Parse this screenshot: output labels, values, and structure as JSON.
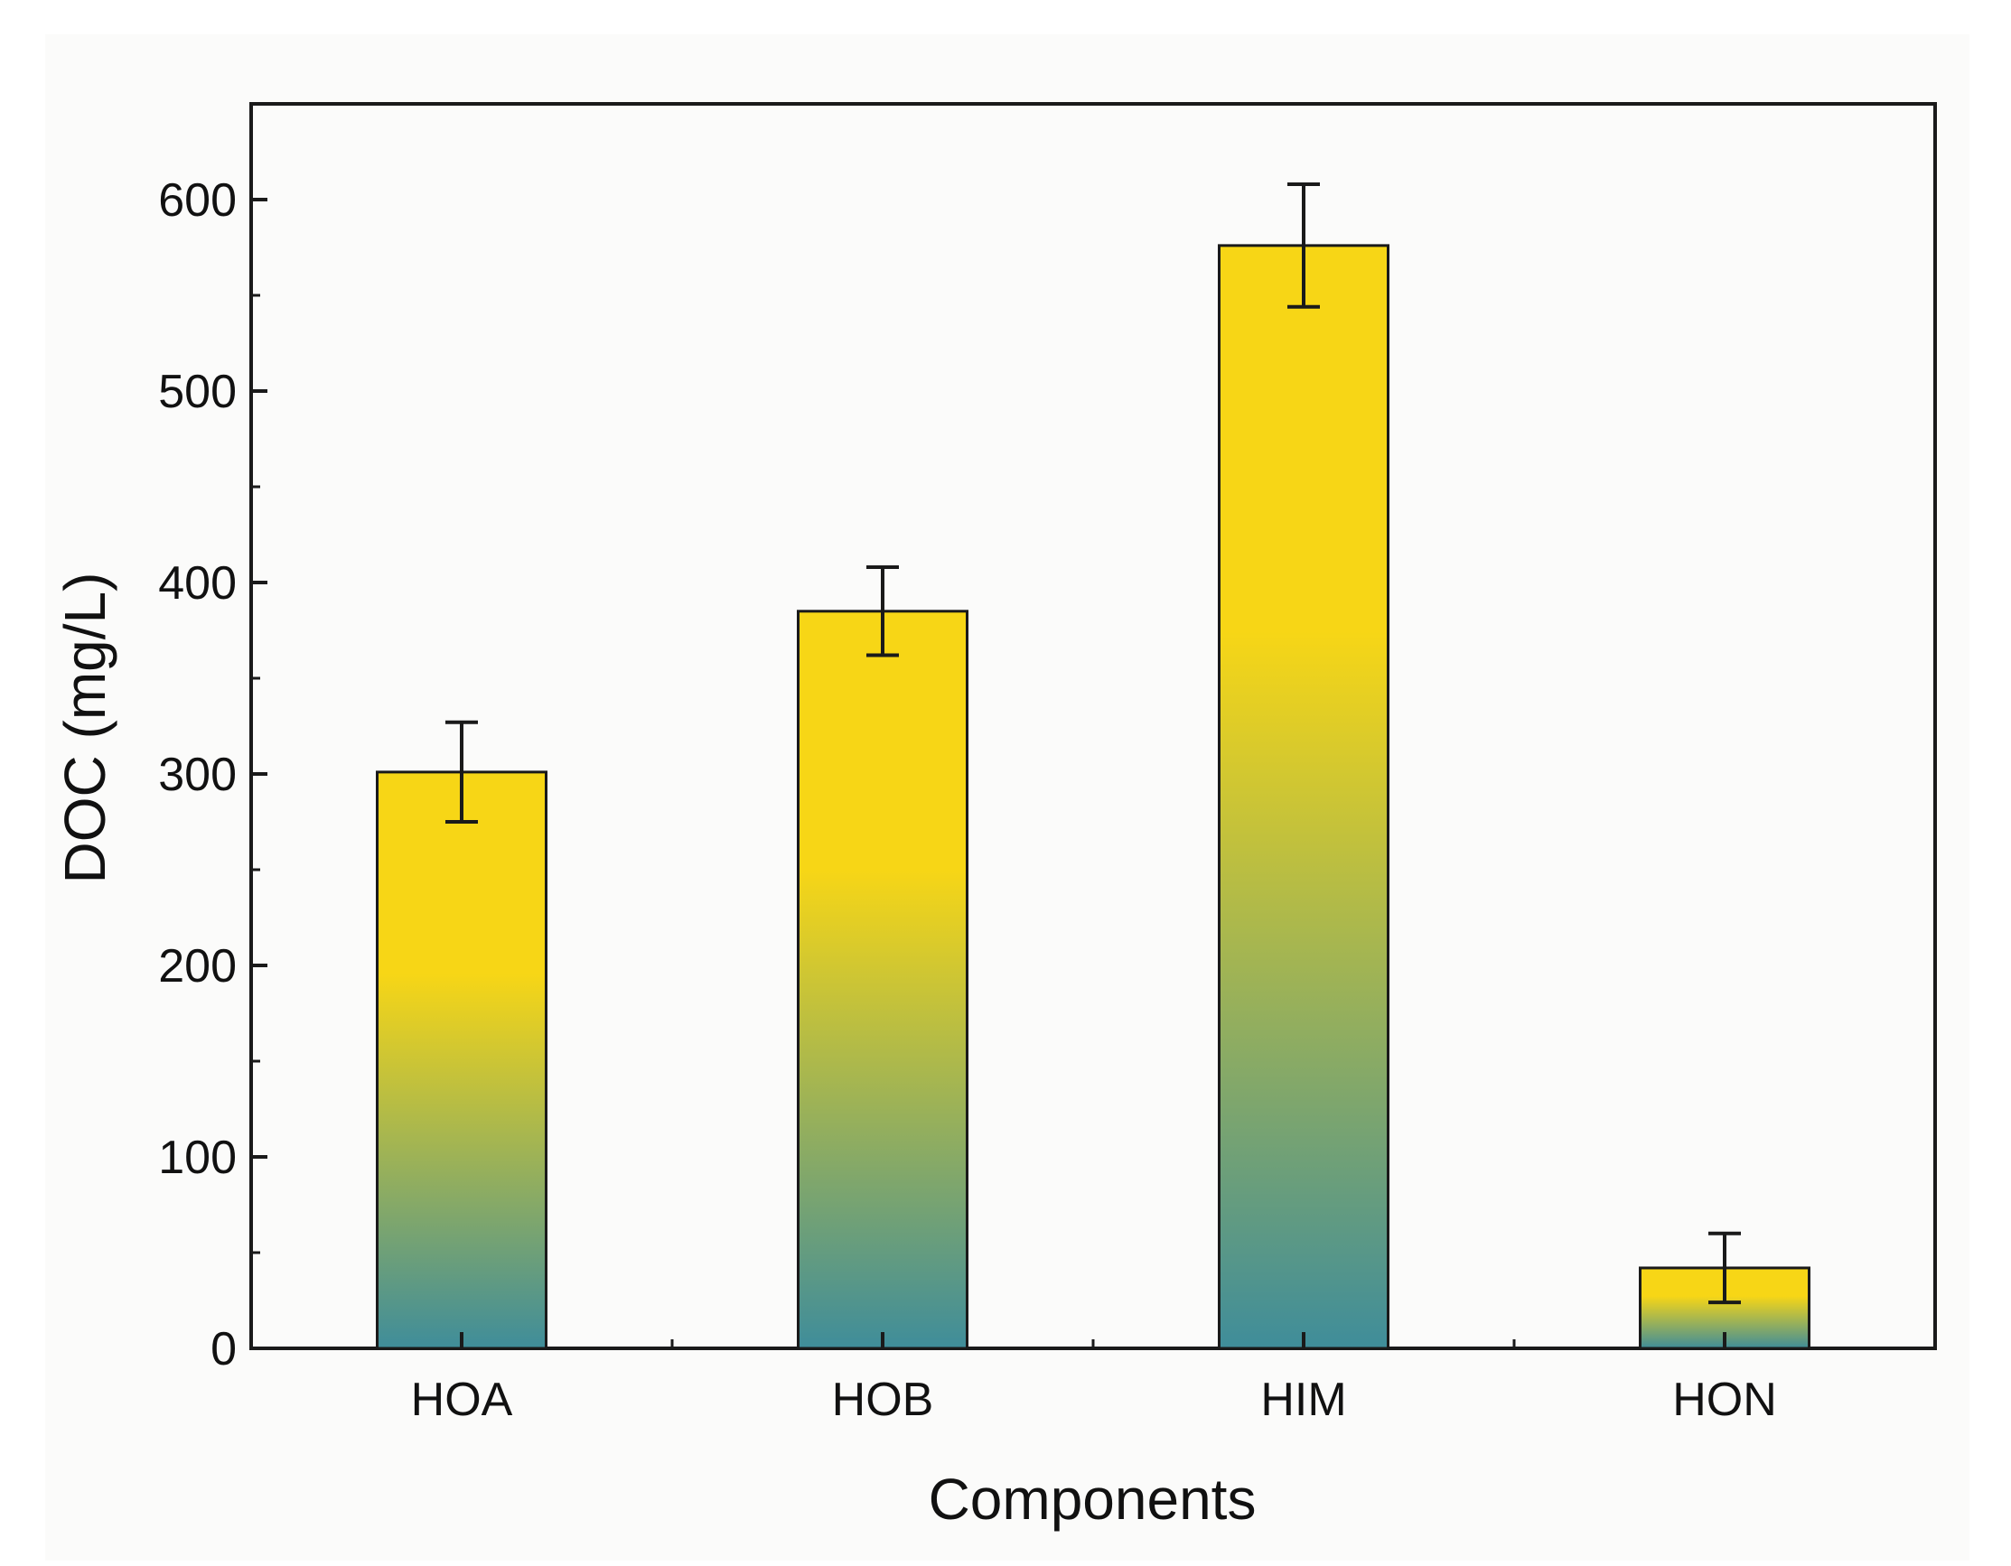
{
  "chart_data": {
    "type": "bar",
    "categories": [
      "HOA",
      "HOB",
      "HIM",
      "HON"
    ],
    "values": [
      301,
      385,
      576,
      42
    ],
    "errors": [
      26,
      23,
      32,
      18
    ],
    "title": "",
    "xlabel": "Components",
    "ylabel": "DOC (mg/L)",
    "ylim": [
      0,
      650
    ],
    "yticks": [
      0,
      100,
      200,
      300,
      400,
      500,
      600
    ],
    "ytick_labels": [
      "0",
      "100",
      "200",
      "300",
      "400",
      "500",
      "600"
    ],
    "grid": false,
    "legend": "none",
    "colors": {
      "bar_top": "#f7d616",
      "bar_bottom": "#3f8d9a",
      "bar_edge": "#1a1a1a",
      "axis": "#1a1a1a",
      "background": "#fbfbfa"
    }
  }
}
